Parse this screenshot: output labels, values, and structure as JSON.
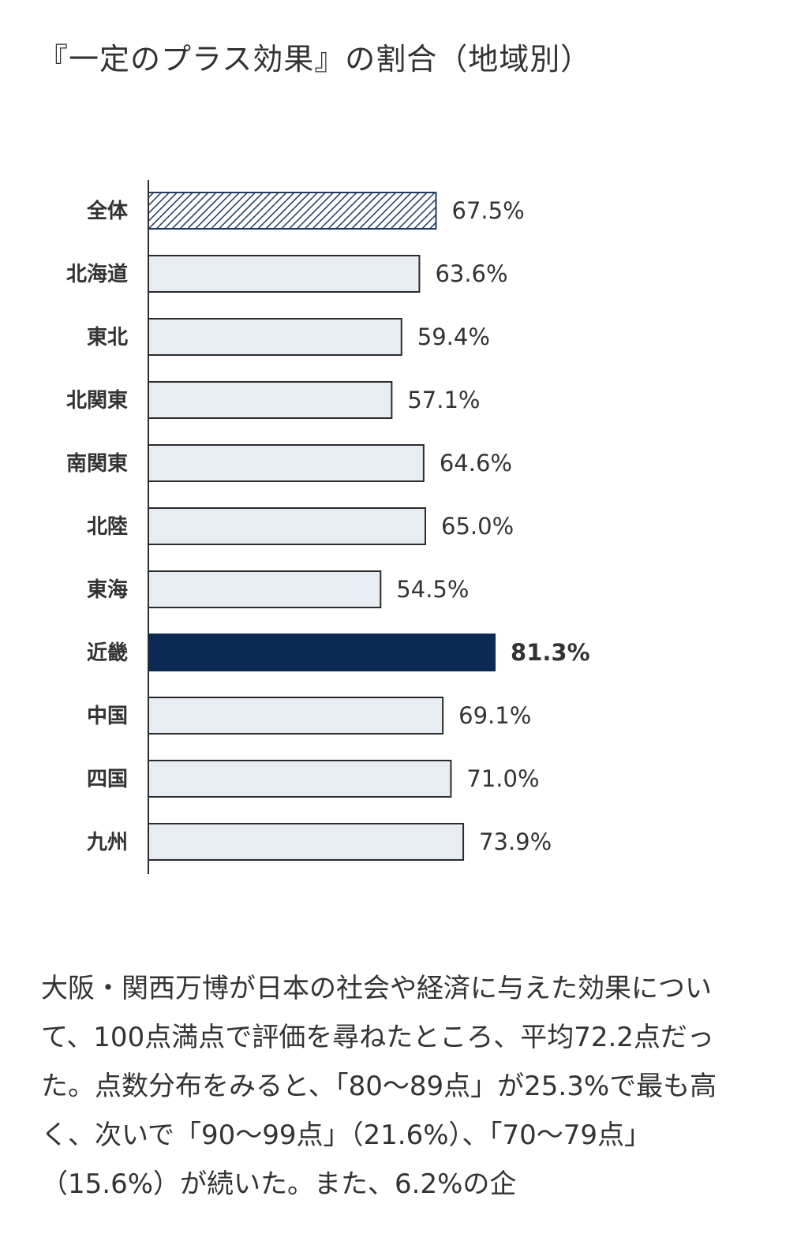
{
  "page": {
    "title": "『一定のプラス効果』の割合（地域別）",
    "body_text": "大阪・関西万博が日本の社会や経済に与えた効果について、100点満点で評価を尋ねたところ、平均72.2点だった。点数分布をみると、「80～89点」が25.3%で最も高く、次いで「90～99点」（21.6%）、「70～79点」（15.6%）が続いた。また、6.2%の企"
  },
  "colors": {
    "bar_fill": "#e8ecf3",
    "bar_stroke": "#2b2b2b",
    "highlight": "#0d2a55",
    "hatch": "#1d3a60"
  },
  "chart_data": {
    "type": "bar",
    "orientation": "horizontal",
    "categories": [
      "全体",
      "北海道",
      "東北",
      "北関東",
      "南関東",
      "北陸",
      "東海",
      "近畿",
      "中国",
      "四国",
      "九州"
    ],
    "values": [
      67.5,
      63.6,
      59.4,
      57.1,
      64.6,
      65.0,
      54.5,
      81.3,
      69.1,
      71.0,
      73.9
    ],
    "value_labels": [
      "67.5%",
      "63.6%",
      "59.4%",
      "57.1%",
      "64.6%",
      "65.0%",
      "54.5%",
      "81.3%",
      "69.1%",
      "71.0%",
      "73.9%"
    ],
    "styles": [
      "hatched",
      "plain",
      "plain",
      "plain",
      "plain",
      "plain",
      "plain",
      "highlight",
      "plain",
      "plain",
      "plain"
    ],
    "xlim": [
      0,
      100
    ],
    "grid": false,
    "legend": "none"
  }
}
